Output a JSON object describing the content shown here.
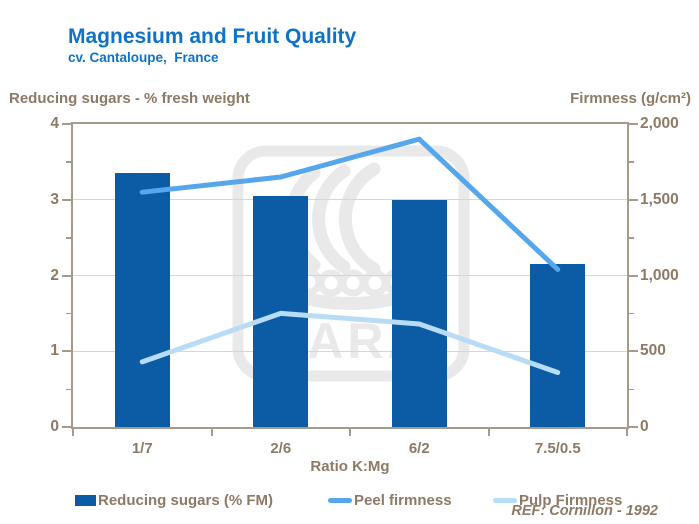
{
  "colors": {
    "title_blue": "#0F72C8",
    "label_brown": "#8C7A66",
    "frame": "#A69A8B",
    "grid": "#DCD5CA",
    "watermark_gray": "#E9E9E9",
    "bar_blue": "#0B5CA4",
    "peel_blue": "#55A6EB",
    "pulp_blue": "#B9DCF6"
  },
  "chart_data": {
    "type": "combo-bar-line",
    "title": "Magnesium and Fruit Quality",
    "subtitle": "cv. Cantaloupe,  France",
    "categories": [
      "1/7",
      "2/6",
      "6/2",
      "7.5/0.5"
    ],
    "xlabel": "Ratio K:Mg",
    "y_axis_left": {
      "title": "Reducing sugars - % fresh weight",
      "range": [
        0,
        4
      ],
      "ticks": [
        "0",
        "1",
        "2",
        "3",
        "4"
      ]
    },
    "y_axis_right": {
      "title": "Firmness (g/cm²)",
      "range": [
        0,
        2000
      ],
      "ticks": [
        "0",
        "500",
        "1,000",
        "1,500",
        "2,000"
      ]
    },
    "series": [
      {
        "name": "Reducing sugars (% FM)",
        "type": "bar",
        "axis": "left",
        "color": "#0B5CA4",
        "values": [
          3.35,
          3.05,
          3.0,
          2.15
        ]
      },
      {
        "name": "Peel firmness",
        "type": "line",
        "axis": "right",
        "color": "#55A6EB",
        "values": [
          1550,
          1650,
          1900,
          1040
        ]
      },
      {
        "name": "Pulp Firmness",
        "type": "line",
        "axis": "right",
        "color": "#B9DCF6",
        "values": [
          430,
          750,
          680,
          360
        ]
      }
    ],
    "grid": "horizontal-major",
    "legend_position": "bottom",
    "ref": "REF: Cornillon - 1992",
    "watermark": "YARA"
  }
}
